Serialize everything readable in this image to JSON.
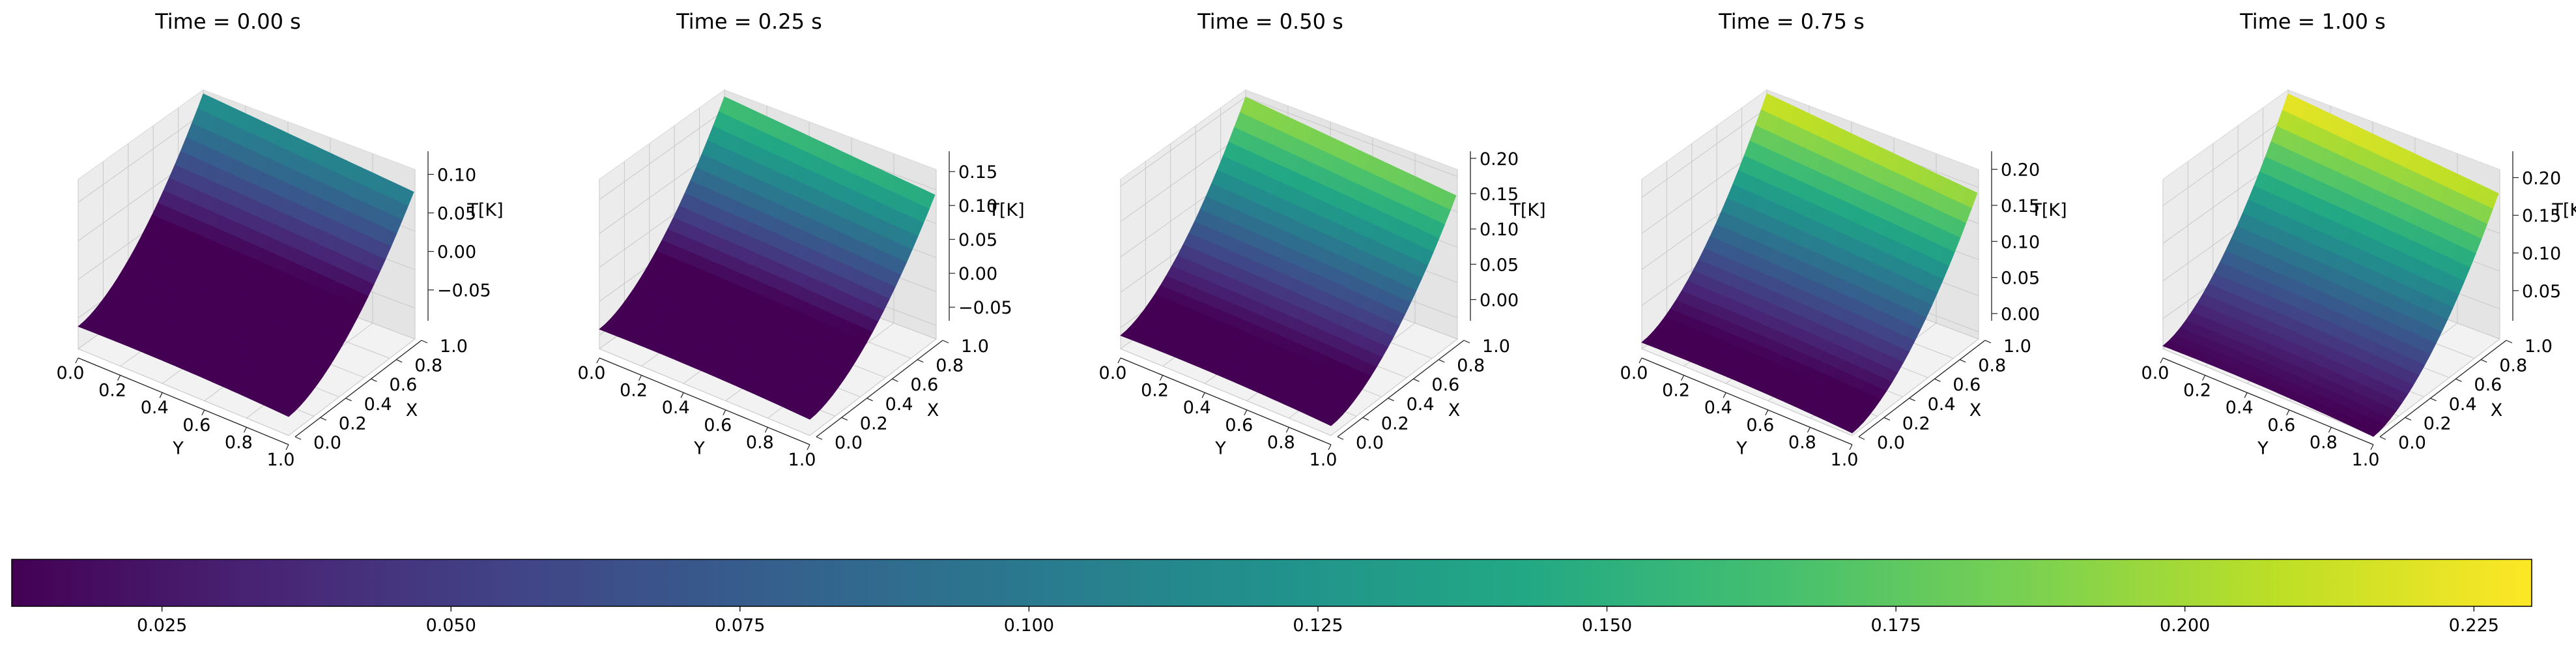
{
  "chart_data": {
    "type": "surface3d",
    "colormap": "viridis",
    "panels": [
      {
        "title": "Time = 0.00 s",
        "xlabel": "X",
        "ylabel": "Y",
        "zlabel": "T[K]",
        "xticks": [
          "0.0",
          "0.2",
          "0.4",
          "0.6",
          "0.8",
          "1.0"
        ],
        "yticks": [
          "0.0",
          "0.2",
          "0.4",
          "0.6",
          "0.8",
          "1.0"
        ],
        "zticks": [
          "−0.05",
          "0.00",
          "0.05",
          "0.10"
        ],
        "zlim": [
          -0.09,
          0.13
        ],
        "zmin": -0.06,
        "zmax": 0.125
      },
      {
        "title": "Time = 0.25 s",
        "xlabel": "X",
        "ylabel": "Y",
        "zlabel": "T[K]",
        "xticks": [
          "0.0",
          "0.2",
          "0.4",
          "0.6",
          "0.8",
          "1.0"
        ],
        "yticks": [
          "0.0",
          "0.2",
          "0.4",
          "0.6",
          "0.8",
          "1.0"
        ],
        "zticks": [
          "−0.05",
          "0.00",
          "0.05",
          "0.10",
          "0.15"
        ],
        "zlim": [
          -0.07,
          0.18
        ],
        "zmin": -0.04,
        "zmax": 0.17
      },
      {
        "title": "Time = 0.50 s",
        "xlabel": "X",
        "ylabel": "Y",
        "zlabel": "T[K]",
        "xticks": [
          "0.0",
          "0.2",
          "0.4",
          "0.6",
          "0.8",
          "1.0"
        ],
        "yticks": [
          "0.0",
          "0.2",
          "0.4",
          "0.6",
          "0.8",
          "1.0"
        ],
        "zticks": [
          "0.00",
          "0.05",
          "0.10",
          "0.15",
          "0.20"
        ],
        "zlim": [
          -0.03,
          0.21
        ],
        "zmin": -0.01,
        "zmax": 0.2
      },
      {
        "title": "Time = 0.75 s",
        "xlabel": "X",
        "ylabel": "Y",
        "zlabel": "T[K]",
        "xticks": [
          "0.0",
          "0.2",
          "0.4",
          "0.6",
          "0.8",
          "1.0"
        ],
        "yticks": [
          "0.0",
          "0.2",
          "0.4",
          "0.6",
          "0.8",
          "1.0"
        ],
        "zticks": [
          "0.00",
          "0.05",
          "0.10",
          "0.15",
          "0.20"
        ],
        "zlim": [
          -0.01,
          0.225
        ],
        "zmin": 0.0,
        "zmax": 0.22
      },
      {
        "title": "Time = 1.00 s",
        "xlabel": "X",
        "ylabel": "Y",
        "zlabel": "T[K]",
        "xticks": [
          "0.0",
          "0.2",
          "0.4",
          "0.6",
          "0.8",
          "1.0"
        ],
        "yticks": [
          "0.0",
          "0.2",
          "0.4",
          "0.6",
          "0.8",
          "1.0"
        ],
        "zticks": [
          "0.05",
          "0.10",
          "0.15",
          "0.20"
        ],
        "zlim": [
          0.01,
          0.235
        ],
        "zmin": 0.015,
        "zmax": 0.23
      }
    ],
    "colorbar": {
      "orientation": "horizontal",
      "range": [
        0.012,
        0.23
      ],
      "ticks": [
        "0.025",
        "0.050",
        "0.075",
        "0.100",
        "0.125",
        "0.150",
        "0.175",
        "0.200",
        "0.225"
      ]
    }
  }
}
